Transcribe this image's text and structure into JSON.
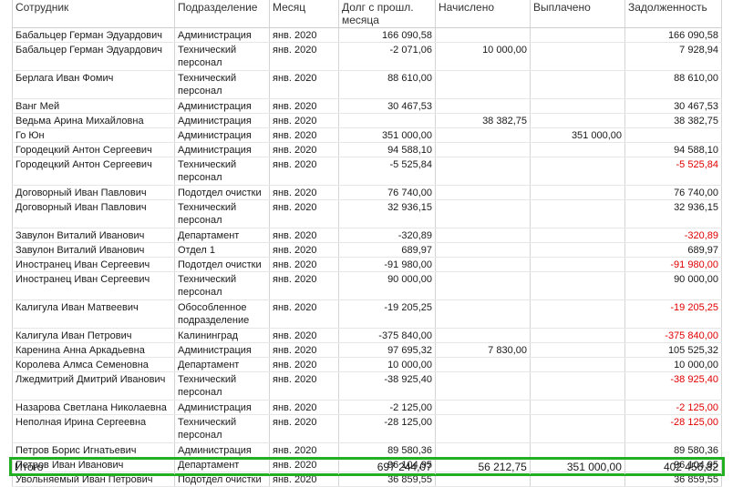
{
  "columns": [
    "Сотрудник",
    "Подразделение",
    "Месяц",
    "Долг с прошл. месяца",
    "Начислено",
    "Выплачено",
    "Задолженность"
  ],
  "rows": [
    {
      "emp": "Бабальцер Герман Эдуардович",
      "dept": "Администрация",
      "month": "янв. 2020",
      "prev": "166 090,58",
      "acc": "",
      "paid": "",
      "debt": "166 090,58",
      "neg": false,
      "tall": false
    },
    {
      "emp": "Бабальцер Герман Эдуардович",
      "dept": "Технический персонал",
      "month": "янв. 2020",
      "prev": "-2 071,06",
      "acc": "10 000,00",
      "paid": "",
      "debt": "7 928,94",
      "neg": false,
      "tall": true
    },
    {
      "emp": "Берлага Иван Фомич",
      "dept": "Технический персонал",
      "month": "янв. 2020",
      "prev": "88 610,00",
      "acc": "",
      "paid": "",
      "debt": "88 610,00",
      "neg": false,
      "tall": true
    },
    {
      "emp": "Ванг Мей",
      "dept": "Администрация",
      "month": "янв. 2020",
      "prev": "30 467,53",
      "acc": "",
      "paid": "",
      "debt": "30 467,53",
      "neg": false,
      "tall": false
    },
    {
      "emp": "Ведьма Арина Михайловна",
      "dept": "Администрация",
      "month": "янв. 2020",
      "prev": "",
      "acc": "38 382,75",
      "paid": "",
      "debt": "38 382,75",
      "neg": false,
      "tall": false
    },
    {
      "emp": "Го Юн",
      "dept": "Администрация",
      "month": "янв. 2020",
      "prev": "351 000,00",
      "acc": "",
      "paid": "351 000,00",
      "debt": "",
      "neg": false,
      "tall": false
    },
    {
      "emp": "Городецкий Антон Сергеевич",
      "dept": "Администрация",
      "month": "янв. 2020",
      "prev": "94 588,10",
      "acc": "",
      "paid": "",
      "debt": "94 588,10",
      "neg": false,
      "tall": false
    },
    {
      "emp": "Городецкий Антон Сергеевич",
      "dept": "Технический персонал",
      "month": "янв. 2020",
      "prev": "-5 525,84",
      "acc": "",
      "paid": "",
      "debt": "-5 525,84",
      "neg": true,
      "tall": true
    },
    {
      "emp": "Договорный Иван Павлович",
      "dept": "Подотдел очистки",
      "month": "янв. 2020",
      "prev": "76 740,00",
      "acc": "",
      "paid": "",
      "debt": "76 740,00",
      "neg": false,
      "tall": false
    },
    {
      "emp": "Договорный Иван Павлович",
      "dept": "Технический персонал",
      "month": "янв. 2020",
      "prev": "32 936,15",
      "acc": "",
      "paid": "",
      "debt": "32 936,15",
      "neg": false,
      "tall": true
    },
    {
      "emp": "Завулон Виталий Иванович",
      "dept": "Департамент",
      "month": "янв. 2020",
      "prev": "-320,89",
      "acc": "",
      "paid": "",
      "debt": "-320,89",
      "neg": true,
      "tall": false
    },
    {
      "emp": "Завулон Виталий Иванович",
      "dept": "Отдел 1",
      "month": "янв. 2020",
      "prev": "689,97",
      "acc": "",
      "paid": "",
      "debt": "689,97",
      "neg": false,
      "tall": false
    },
    {
      "emp": "Иностранец Иван Сергеевич",
      "dept": "Подотдел очистки",
      "month": "янв. 2020",
      "prev": "-91 980,00",
      "acc": "",
      "paid": "",
      "debt": "-91 980,00",
      "neg": true,
      "tall": false
    },
    {
      "emp": "Иностранец Иван Сергеевич",
      "dept": "Технический персонал",
      "month": "янв. 2020",
      "prev": "90 000,00",
      "acc": "",
      "paid": "",
      "debt": "90 000,00",
      "neg": false,
      "tall": true
    },
    {
      "emp": "Калигула Иван Матвеевич",
      "dept": "Обособленное подразделение",
      "month": "янв. 2020",
      "prev": "-19 205,25",
      "acc": "",
      "paid": "",
      "debt": "-19 205,25",
      "neg": true,
      "tall": true
    },
    {
      "emp": "Калигула Иван Петрович",
      "dept": "Калининград",
      "month": "янв. 2020",
      "prev": "-375 840,00",
      "acc": "",
      "paid": "",
      "debt": "-375 840,00",
      "neg": true,
      "tall": false
    },
    {
      "emp": "Каренина Анна Аркадьевна",
      "dept": "Администрация",
      "month": "янв. 2020",
      "prev": "97 695,32",
      "acc": "7 830,00",
      "paid": "",
      "debt": "105 525,32",
      "neg": false,
      "tall": false
    },
    {
      "emp": "Королева Алмса Семеновна",
      "dept": "Департамент",
      "month": "янв. 2020",
      "prev": "10 000,00",
      "acc": "",
      "paid": "",
      "debt": "10 000,00",
      "neg": false,
      "tall": false
    },
    {
      "emp": "Лжедмитрий Дмитрий Иванович",
      "dept": "Технический персонал",
      "month": "янв. 2020",
      "prev": "-38 925,40",
      "acc": "",
      "paid": "",
      "debt": "-38 925,40",
      "neg": true,
      "tall": true
    },
    {
      "emp": "Назарова Светлана Николаевна",
      "dept": "Администрация",
      "month": "янв. 2020",
      "prev": "-2 125,00",
      "acc": "",
      "paid": "",
      "debt": "-2 125,00",
      "neg": true,
      "tall": false
    },
    {
      "emp": "Неполная Ирина Сергеевна",
      "dept": "Технический персонал",
      "month": "янв. 2020",
      "prev": "-28 125,00",
      "acc": "",
      "paid": "",
      "debt": "-28 125,00",
      "neg": true,
      "tall": true
    },
    {
      "emp": "Петров Борис Игнатьевич",
      "dept": "Администрация",
      "month": "янв. 2020",
      "prev": "89 580,36",
      "acc": "",
      "paid": "",
      "debt": "89 580,36",
      "neg": false,
      "tall": false
    },
    {
      "emp": "Петров Иван Иванович",
      "dept": "Департамент",
      "month": "янв. 2020",
      "prev": "96 104,95",
      "acc": "",
      "paid": "",
      "debt": "96 104,95",
      "neg": false,
      "tall": false
    },
    {
      "emp": "Увольняемый Иван Петрович",
      "dept": "Подотдел очистки",
      "month": "янв. 2020",
      "prev": "36 859,55",
      "acc": "",
      "paid": "",
      "debt": "36 859,55",
      "neg": false,
      "tall": false
    }
  ],
  "total": {
    "label": "Итого",
    "prev": "697 244,07",
    "acc": "56 212,75",
    "paid": "351 000,00",
    "debt": "402 456,82"
  },
  "colors": {
    "negative": "#e00000",
    "highlight_box": "#22b022"
  }
}
